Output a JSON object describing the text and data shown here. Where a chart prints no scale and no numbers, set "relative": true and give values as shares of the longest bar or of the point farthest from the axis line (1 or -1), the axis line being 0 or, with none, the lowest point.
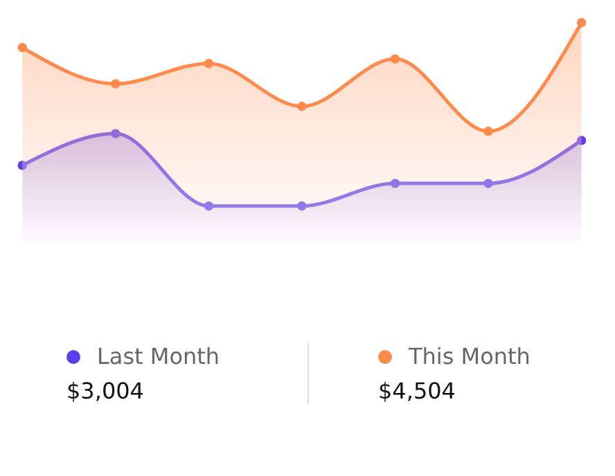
{
  "chart_data": {
    "type": "area",
    "relative": true,
    "marker": "circle",
    "legend": "bottom",
    "categories": [
      null,
      null,
      null,
      null,
      null,
      null,
      null
    ],
    "series": [
      {
        "name": "Last Month",
        "color": "#5b3ef0",
        "values": [
          0.37,
          0.51,
          0.19,
          0.19,
          0.29,
          0.29,
          0.48
        ]
      },
      {
        "name": "This Month",
        "color": "#ff8a4c",
        "values": [
          0.89,
          0.73,
          0.82,
          0.63,
          0.84,
          0.52,
          1
        ]
      }
    ],
    "annotations": [
      "$3,004",
      "$4,504"
    ]
  }
}
